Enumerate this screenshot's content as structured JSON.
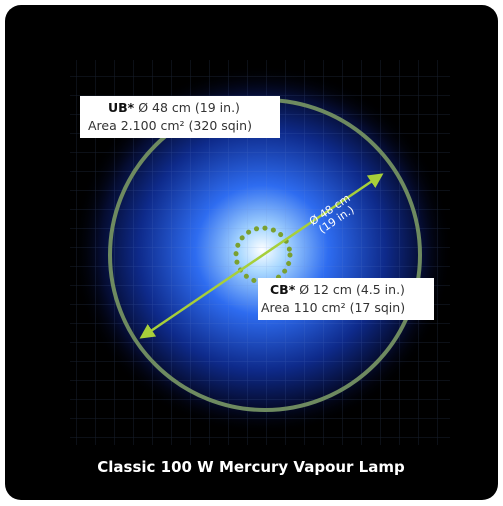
{
  "ub_label": {
    "code": "UB*",
    "diameter": "Ø 48 cm (19 in.)",
    "area": "Area 2.100 cm² (320 sqin)"
  },
  "arrow_label": {
    "line1": "Ø 48 cm",
    "line2": "(19 in.)"
  },
  "cb_label": {
    "code": "CB*",
    "diameter": "Ø 12 cm (4.5 in.)",
    "area": "Area 110 cm² (17 sqin)"
  },
  "caption": "Classic 100 W Mercury Vapour Lamp"
}
